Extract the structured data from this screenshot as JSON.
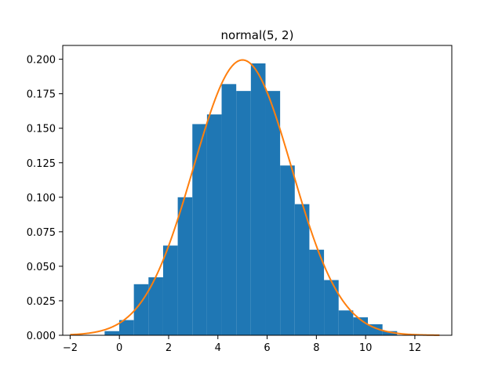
{
  "chart_data": {
    "type": "bar",
    "title": "normal(5, 2)",
    "xlabel": "",
    "ylabel": "",
    "xlim": [
      -2.3,
      13.5
    ],
    "ylim": [
      0,
      0.21
    ],
    "grid": false,
    "x_ticks": [
      -2,
      0,
      2,
      4,
      6,
      8,
      10,
      12
    ],
    "y_ticks": [
      0.0,
      0.025,
      0.05,
      0.075,
      0.1,
      0.125,
      0.15,
      0.175,
      0.2
    ],
    "x_tick_labels": [
      "−2",
      "0",
      "2",
      "4",
      "6",
      "8",
      "10",
      "12"
    ],
    "y_tick_labels": [
      "0.000",
      "0.025",
      "0.050",
      "0.075",
      "0.100",
      "0.125",
      "0.150",
      "0.175",
      "0.200"
    ],
    "histogram": {
      "bin_edges": [
        -0.6,
        -0.006,
        0.588,
        1.182,
        1.776,
        2.37,
        2.964,
        3.558,
        4.152,
        4.746,
        5.34,
        5.934,
        6.528,
        7.122,
        7.716,
        8.31,
        8.904,
        9.498,
        10.092,
        10.686,
        11.28,
        11.874
      ],
      "densities": [
        0.003,
        0.011,
        0.037,
        0.042,
        0.065,
        0.1,
        0.153,
        0.16,
        0.182,
        0.177,
        0.197,
        0.177,
        0.123,
        0.095,
        0.062,
        0.04,
        0.018,
        0.013,
        0.008,
        0.003,
        0.0
      ],
      "color": "#1f77b4"
    },
    "curve": {
      "type": "line",
      "function": "normal_pdf",
      "mu": 5,
      "sigma": 2,
      "x_range": [
        -2,
        13
      ],
      "color": "#ff7f0e"
    }
  }
}
